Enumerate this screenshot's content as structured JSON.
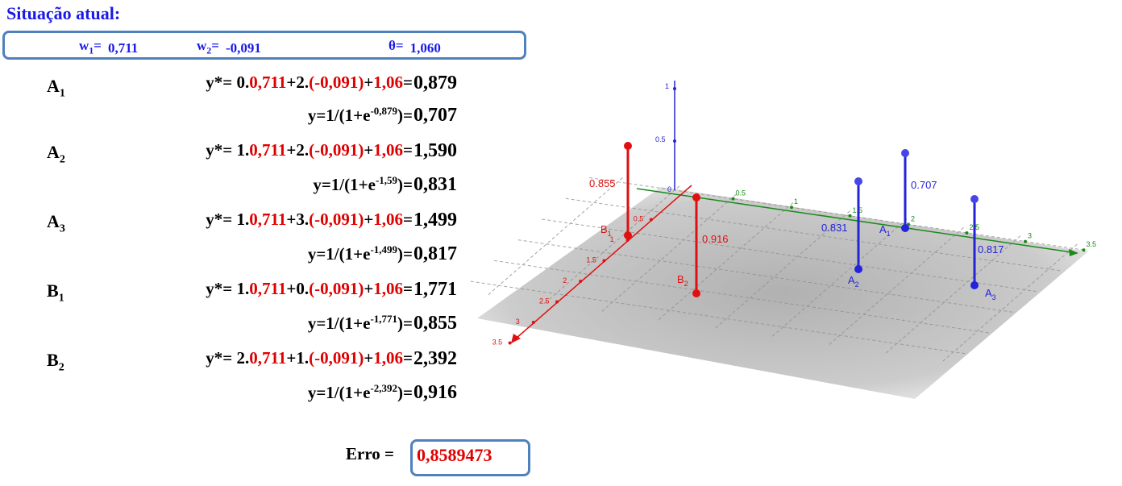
{
  "title": "Situação atual:",
  "params": {
    "w1_label": "w",
    "w1_sub": "1",
    "w1_eq": "=",
    "w1_value": "0,711",
    "w2_label": "w",
    "w2_sub": "2",
    "w2_eq": "=",
    "w2_value": "-0,091",
    "theta_label": "θ=",
    "theta_value": "1,060"
  },
  "rows": [
    {
      "label": "A",
      "sub": "1",
      "expr_a": "y*= 0.",
      "w1": "0,711",
      "expr_b": "+2.",
      "w2": "(-0,091)",
      "expr_c": "+",
      "theta": "1,06",
      "expr_d": "=",
      "ystar": "0,879",
      "sig_a": "y=1/(1+e",
      "sig_exp": "-0,879",
      "sig_b": ")=",
      "y": "0,707"
    },
    {
      "label": "A",
      "sub": "2",
      "expr_a": "y*= 1.",
      "w1": "0,711",
      "expr_b": "+2.",
      "w2": "(-0,091)",
      "expr_c": "+",
      "theta": "1,06",
      "expr_d": "=",
      "ystar": "1,590",
      "sig_a": "y=1/(1+e",
      "sig_exp": "-1,59",
      "sig_b": ")=",
      "y": "0,831"
    },
    {
      "label": "A",
      "sub": "3",
      "expr_a": "y*= 1.",
      "w1": "0,711",
      "expr_b": "+3.",
      "w2": "(-0,091)",
      "expr_c": "+",
      "theta": "1,06",
      "expr_d": "=",
      "ystar": "1,499",
      "sig_a": "y=1/(1+e",
      "sig_exp": "-1,499",
      "sig_b": ")=",
      "y": "0,817"
    },
    {
      "label": "B",
      "sub": "1",
      "expr_a": "y*= 1.",
      "w1": "0,711",
      "expr_b": "+0.",
      "w2": "(-0,091)",
      "expr_c": "+",
      "theta": "1,06",
      "expr_d": "=",
      "ystar": "1,771",
      "sig_a": "y=1/(1+e",
      "sig_exp": "-1,771",
      "sig_b": ")=",
      "y": "0,855"
    },
    {
      "label": "B",
      "sub": "2",
      "expr_a": "y*= 2.",
      "w1": "0,711",
      "expr_b": "+1.",
      "w2": "(-0,091)",
      "expr_c": "+",
      "theta": "1,06",
      "expr_d": "=",
      "ystar": "2,392",
      "sig_a": "y=1/(1+e",
      "sig_exp": "-2,392",
      "sig_b": ")=",
      "y": "0,916"
    }
  ],
  "error": {
    "label": "Erro =",
    "value": "0,8589473"
  },
  "graph": {
    "z_ticks": [
      "1",
      "0.5",
      "0"
    ],
    "x_ticks": [
      "0.5",
      "1",
      "1.5",
      "2",
      "2.5",
      "3",
      "3.5"
    ],
    "y_ticks": [
      "0.5",
      "1",
      "1.5",
      "2",
      "2.5",
      "3",
      "3.5"
    ],
    "points": [
      {
        "name": "A",
        "sub": "1",
        "value": "0.707",
        "color": "#2323d8"
      },
      {
        "name": "A",
        "sub": "2",
        "value": "0.831",
        "color": "#2323d8"
      },
      {
        "name": "A",
        "sub": "3",
        "value": "0.817",
        "color": "#2323d8"
      },
      {
        "name": "B",
        "sub": "1",
        "value": "0.855",
        "color": "#e01010"
      },
      {
        "name": "B",
        "sub": "2",
        "value": "0.916",
        "color": "#e01010"
      }
    ],
    "colors": {
      "green_axis": "#1a8a1a",
      "red_axis": "#e01010",
      "blue_axis": "#2323d8"
    }
  }
}
